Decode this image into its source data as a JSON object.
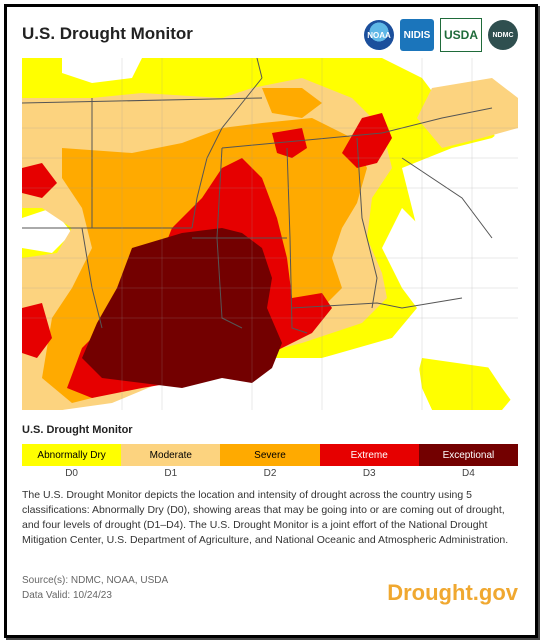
{
  "header": {
    "title": "U.S. Drought Monitor",
    "logos": [
      {
        "label": "NOAA",
        "icon": "noaa-logo"
      },
      {
        "label": "NIDIS",
        "icon": "nidis-logo"
      },
      {
        "label": "USDA",
        "icon": "usda-logo"
      },
      {
        "label": "NDMC",
        "icon": "ndmc-logo"
      }
    ]
  },
  "map": {
    "colors": {
      "none": "#ffffff",
      "d0": "#ffff00",
      "d1": "#fcd37f",
      "d2": "#ffaa00",
      "d3": "#e60000",
      "d4": "#730000",
      "water": "#ffffff",
      "borders": "#555555"
    }
  },
  "legend": {
    "title": "U.S. Drought Monitor",
    "items": [
      {
        "label": "Abnormally Dry",
        "code": "D0",
        "color": "#ffff00",
        "text_color": "#000000"
      },
      {
        "label": "Moderate",
        "code": "D1",
        "color": "#fcd37f",
        "text_color": "#000000"
      },
      {
        "label": "Severe",
        "code": "D2",
        "color": "#ffaa00",
        "text_color": "#000000"
      },
      {
        "label": "Extreme",
        "code": "D3",
        "color": "#e60000",
        "text_color": "#ffffff"
      },
      {
        "label": "Exceptional",
        "code": "D4",
        "color": "#730000",
        "text_color": "#ffffff"
      }
    ]
  },
  "description": "The U.S. Drought Monitor depicts the location and intensity of drought across the country using 5 classifications: Abnormally Dry (D0), showing areas that may be going into or are coming out of drought, and four levels of drought (D1–D4). The U.S. Drought Monitor is a joint effort of the National Drought Mitigation Center, U.S. Department of Agriculture, and National Oceanic and Atmospheric Administration.",
  "source": "Source(s): NDMC, NOAA, USDA",
  "data_valid": "Data Valid: 10/24/23",
  "brand": "Drought.gov"
}
